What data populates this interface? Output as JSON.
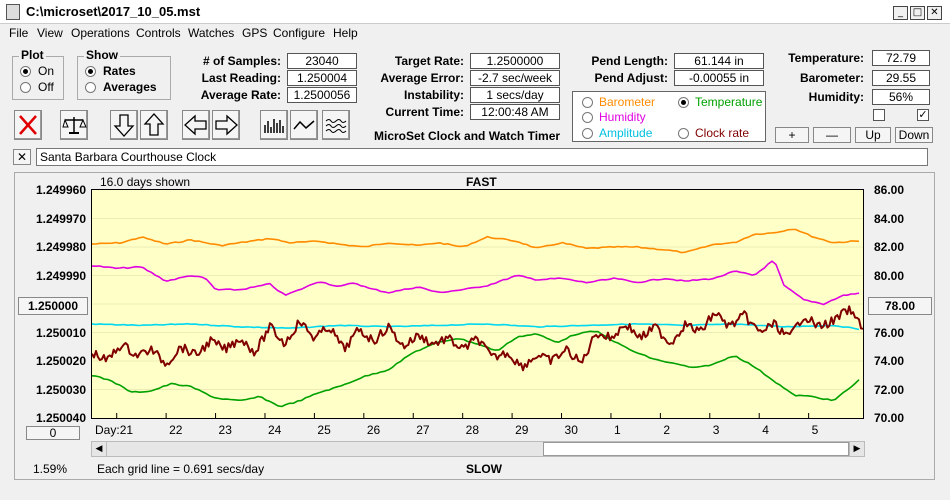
{
  "window": {
    "title": "C:\\microset\\2017_10_05.mst",
    "minimize": "_",
    "maximize": "□",
    "close": "✕"
  },
  "menu": [
    "File",
    "View",
    "Operations",
    "Controls",
    "Watches",
    "GPS",
    "Configure",
    "Help"
  ],
  "plot_group": {
    "title": "Plot",
    "on_label": "On",
    "off_label": "Off",
    "selected": "On"
  },
  "show_group": {
    "title": "Show",
    "rates_label": "Rates",
    "averages_label": "Averages",
    "selected": "Rates"
  },
  "stats": {
    "samples_label": "# of Samples:",
    "samples": "23040",
    "last_reading_label": "Last Reading:",
    "last_reading": "1.250004",
    "average_rate_label": "Average Rate:",
    "average_rate": "1.2500056",
    "target_rate_label": "Target Rate:",
    "target_rate": "1.2500000",
    "average_error_label": "Average Error:",
    "average_error": "-2.7 sec/week",
    "instability_label": "Instability:",
    "instability": "1 secs/day",
    "current_time_label": "Current Time:",
    "current_time": "12:00:48 AM",
    "pend_length_label": "Pend Length:",
    "pend_length": "61.144 in",
    "pend_adjust_label": "Pend Adjust:",
    "pend_adjust": "-0.00055 in",
    "temperature_label": "Temperature:",
    "temperature": "72.79",
    "barometer_label": "Barometer:",
    "barometer": "29.55",
    "humidity_label": "Humidity:",
    "humidity": "56%"
  },
  "app_caption": "MicroSet Clock and Watch Timer",
  "sensors": {
    "barometer": {
      "label": "Barometer",
      "color": "#ff8c00"
    },
    "temperature": {
      "label": "Temperature",
      "color": "#00a000",
      "selected": true
    },
    "humidity": {
      "label": "Humidity",
      "color": "#e000e0"
    },
    "amplitude": {
      "label": "Amplitude",
      "color": "#00c0e0"
    },
    "clock_rate": {
      "label": "Clock rate",
      "color": "#800000"
    }
  },
  "scale_buttons": {
    "plus": "+",
    "minus": "—",
    "up": "Up",
    "down": "Down"
  },
  "clock_name": "Santa Barbara Courthouse Clock",
  "chart_data": {
    "type": "line",
    "top_label": "FAST",
    "bottom_label": "SLOW",
    "days_shown": "16.0 days shown",
    "grid_note": "Each grid line = 0.691 secs/day",
    "percent": "1.59%",
    "x_label": "Day:",
    "x_ticks": [
      "21",
      "22",
      "23",
      "24",
      "25",
      "26",
      "27",
      "28",
      "29",
      "30",
      "1",
      "2",
      "3",
      "4",
      "5"
    ],
    "y_left_ticks": [
      "1.249960",
      "1.249970",
      "1.249980",
      "1.249990",
      "1.250000",
      "1.250010",
      "1.250020",
      "1.250030",
      "1.250040"
    ],
    "y_left_range": [
      1.24996,
      1.25004
    ],
    "y_left_inverted": true,
    "y_left_center_button": "1.250000",
    "y_right_ticks": [
      "86.00",
      "84.00",
      "82.00",
      "80.00",
      "78.00",
      "76.00",
      "74.00",
      "72.00",
      "70.00"
    ],
    "y_right_range": [
      70,
      86
    ],
    "y_right_center_button": "78.00",
    "left_bottom_button": "0",
    "x_range": [
      0,
      15.6
    ],
    "series": [
      {
        "key": "barometer",
        "color": "#ff8c00",
        "axis": "right",
        "points": [
          [
            0,
            82.2
          ],
          [
            0.6,
            82.3
          ],
          [
            1.0,
            82.7
          ],
          [
            1.5,
            82.2
          ],
          [
            2.0,
            82.5
          ],
          [
            2.6,
            82.1
          ],
          [
            3.0,
            82.3
          ],
          [
            3.6,
            82.6
          ],
          [
            4.0,
            82.3
          ],
          [
            4.6,
            82.4
          ],
          [
            5.0,
            82.2
          ],
          [
            5.5,
            82.0
          ],
          [
            6.0,
            82.3
          ],
          [
            6.6,
            82.1
          ],
          [
            7.0,
            82.3
          ],
          [
            7.5,
            82.0
          ],
          [
            8.0,
            82.7
          ],
          [
            8.6,
            82.4
          ],
          [
            9.0,
            81.9
          ],
          [
            9.5,
            82.3
          ],
          [
            10.0,
            81.9
          ],
          [
            10.6,
            82.0
          ],
          [
            11.0,
            82.0
          ],
          [
            11.6,
            81.8
          ],
          [
            12.0,
            81.6
          ],
          [
            12.6,
            82.2
          ],
          [
            13.0,
            82.3
          ],
          [
            13.4,
            82.9
          ],
          [
            13.8,
            83.0
          ],
          [
            14.2,
            83.3
          ],
          [
            14.6,
            82.7
          ],
          [
            15.0,
            82.3
          ],
          [
            15.4,
            82.4
          ],
          [
            15.6,
            82.4
          ]
        ]
      },
      {
        "key": "humidity",
        "color": "#e000e0",
        "axis": "right",
        "points": [
          [
            0,
            80.7
          ],
          [
            0.5,
            80.5
          ],
          [
            1.0,
            80.6
          ],
          [
            1.3,
            80.0
          ],
          [
            1.5,
            79.6
          ],
          [
            2.0,
            80.0
          ],
          [
            2.3,
            79.8
          ],
          [
            2.5,
            79.0
          ],
          [
            3.0,
            79.0
          ],
          [
            3.6,
            79.4
          ],
          [
            3.9,
            78.6
          ],
          [
            4.2,
            79.0
          ],
          [
            4.6,
            79.6
          ],
          [
            5.0,
            79.2
          ],
          [
            5.3,
            79.5
          ],
          [
            5.6,
            79.1
          ],
          [
            6.0,
            78.8
          ],
          [
            6.6,
            79.2
          ],
          [
            7.0,
            78.8
          ],
          [
            7.5,
            79.0
          ],
          [
            8.0,
            79.3
          ],
          [
            8.6,
            80.0
          ],
          [
            9.0,
            79.7
          ],
          [
            9.5,
            79.8
          ],
          [
            10.0,
            79.5
          ],
          [
            10.6,
            79.8
          ],
          [
            11.0,
            79.5
          ],
          [
            11.6,
            79.8
          ],
          [
            12.0,
            79.6
          ],
          [
            12.6,
            79.8
          ],
          [
            13.0,
            80.3
          ],
          [
            13.4,
            80.0
          ],
          [
            13.8,
            81.1
          ],
          [
            14.0,
            79.3
          ],
          [
            14.4,
            78.3
          ],
          [
            14.8,
            78.0
          ],
          [
            15.2,
            78.6
          ],
          [
            15.6,
            78.8
          ]
        ]
      },
      {
        "key": "amplitude",
        "color": "#00d8f0",
        "axis": "right",
        "points": [
          [
            0,
            76.6
          ],
          [
            1.0,
            76.5
          ],
          [
            2.0,
            76.6
          ],
          [
            3.0,
            76.4
          ],
          [
            4.0,
            76.3
          ],
          [
            5.0,
            76.5
          ],
          [
            6.0,
            76.4
          ],
          [
            7.0,
            76.5
          ],
          [
            8.0,
            76.6
          ],
          [
            9.0,
            76.4
          ],
          [
            10.0,
            76.5
          ],
          [
            11.0,
            76.6
          ],
          [
            12.0,
            76.5
          ],
          [
            13.0,
            76.6
          ],
          [
            14.0,
            76.4
          ],
          [
            15.0,
            76.5
          ],
          [
            15.6,
            76.2
          ]
        ]
      },
      {
        "key": "temperature",
        "color": "#00a000",
        "axis": "right",
        "points": [
          [
            0,
            73.0
          ],
          [
            0.4,
            72.6
          ],
          [
            0.8,
            71.8
          ],
          [
            1.2,
            71.9
          ],
          [
            1.6,
            72.4
          ],
          [
            2.0,
            72.2
          ],
          [
            2.5,
            71.4
          ],
          [
            3.0,
            71.2
          ],
          [
            3.4,
            71.5
          ],
          [
            3.8,
            70.8
          ],
          [
            4.2,
            71.2
          ],
          [
            4.6,
            71.8
          ],
          [
            5.0,
            72.2
          ],
          [
            5.5,
            72.9
          ],
          [
            6.0,
            73.4
          ],
          [
            6.5,
            74.6
          ],
          [
            7.0,
            75.3
          ],
          [
            7.4,
            75.6
          ],
          [
            7.8,
            75.2
          ],
          [
            8.2,
            74.7
          ],
          [
            8.6,
            75.7
          ],
          [
            9.0,
            75.9
          ],
          [
            9.4,
            75.3
          ],
          [
            9.8,
            75.9
          ],
          [
            10.2,
            76.1
          ],
          [
            10.6,
            75.3
          ],
          [
            11.0,
            74.6
          ],
          [
            11.4,
            74.1
          ],
          [
            11.8,
            73.8
          ],
          [
            12.2,
            73.5
          ],
          [
            12.6,
            73.8
          ],
          [
            13.0,
            74.4
          ],
          [
            13.4,
            73.6
          ],
          [
            13.8,
            72.6
          ],
          [
            14.2,
            71.6
          ],
          [
            14.6,
            71.5
          ],
          [
            15.0,
            71.2
          ],
          [
            15.4,
            72.3
          ],
          [
            15.6,
            72.9
          ]
        ]
      },
      {
        "key": "clock_rate",
        "color": "#800000",
        "axis": "left",
        "points": [
          [
            0,
            1.250017
          ],
          [
            0.3,
            1.25002
          ],
          [
            0.6,
            1.250014
          ],
          [
            0.9,
            1.250018
          ],
          [
            1.2,
            1.250016
          ],
          [
            1.5,
            1.250021
          ],
          [
            1.8,
            1.250015
          ],
          [
            2.1,
            1.250018
          ],
          [
            2.4,
            1.250013
          ],
          [
            2.7,
            1.250016
          ],
          [
            3.0,
            1.250012
          ],
          [
            3.3,
            1.250017
          ],
          [
            3.6,
            1.250008
          ],
          [
            3.9,
            1.250014
          ],
          [
            4.2,
            1.250006
          ],
          [
            4.5,
            1.250012
          ],
          [
            4.8,
            1.250008
          ],
          [
            5.1,
            1.250016
          ],
          [
            5.4,
            1.250009
          ],
          [
            5.7,
            1.250013
          ],
          [
            6.0,
            1.250008
          ],
          [
            6.3,
            1.250015
          ],
          [
            6.6,
            1.250011
          ],
          [
            6.9,
            1.250014
          ],
          [
            7.2,
            1.250012
          ],
          [
            7.5,
            1.250016
          ],
          [
            7.8,
            1.250012
          ],
          [
            8.1,
            1.250019
          ],
          [
            8.4,
            1.250017
          ],
          [
            8.7,
            1.250022
          ],
          [
            9.0,
            1.250018
          ],
          [
            9.3,
            1.25002
          ],
          [
            9.6,
            1.250016
          ],
          [
            9.9,
            1.250021
          ],
          [
            10.2,
            1.25001
          ],
          [
            10.5,
            1.250012
          ],
          [
            10.8,
            1.250007
          ],
          [
            11.1,
            1.250012
          ],
          [
            11.4,
            1.250008
          ],
          [
            11.7,
            1.250014
          ],
          [
            12.0,
            1.250007
          ],
          [
            12.3,
            1.25001
          ],
          [
            12.6,
            1.250003
          ],
          [
            12.9,
            1.250008
          ],
          [
            13.2,
            1.250004
          ],
          [
            13.5,
            1.25001
          ],
          [
            13.8,
            1.250007
          ],
          [
            14.1,
            1.250012
          ],
          [
            14.4,
            1.250004
          ],
          [
            14.7,
            1.250008
          ],
          [
            15.0,
            1.250006
          ],
          [
            15.3,
            1.250002
          ],
          [
            15.6,
            1.250008
          ]
        ]
      }
    ]
  }
}
